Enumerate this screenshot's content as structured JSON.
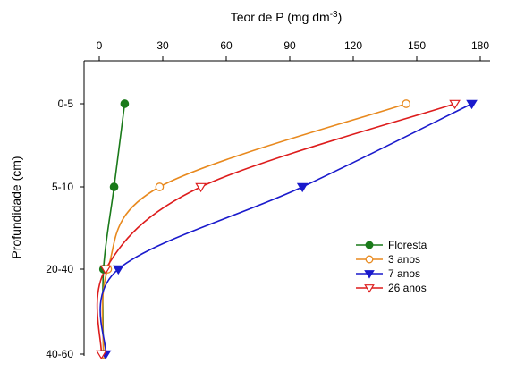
{
  "chart_data": {
    "type": "line",
    "title": "",
    "xlabel": {
      "prefix": "Teor de P (mg dm",
      "superscript": "-3",
      "suffix": ")"
    },
    "ylabel": "Profundidade (cm)",
    "x_axis_position": "top",
    "xlim": [
      0,
      180
    ],
    "x_ticks": [
      0,
      30,
      60,
      90,
      120,
      150,
      180
    ],
    "y_categories": [
      "0-5",
      "5-10",
      "20-40",
      "40-60"
    ],
    "y_category_values": [
      0,
      1,
      2,
      3
    ],
    "y_inverted": true,
    "grid": false,
    "legend_position": "center-right",
    "series": [
      {
        "name": "Floresta",
        "color": "#1a7a1a",
        "marker": "circle",
        "filled": true,
        "points": [
          {
            "x": 12,
            "y": "0-5"
          },
          {
            "x": 7,
            "y": "5-10"
          },
          {
            "x": 2,
            "y": "20-40"
          },
          {
            "x": 2,
            "y": "40-60"
          }
        ]
      },
      {
        "name": "3 anos",
        "color": "#e8891e",
        "marker": "circle",
        "filled": false,
        "points": [
          {
            "x": 145,
            "y": "0-5"
          },
          {
            "x": 28.5,
            "y": "5-10"
          },
          {
            "x": 4,
            "y": "20-40"
          },
          {
            "x": 2,
            "y": "40-60"
          }
        ]
      },
      {
        "name": "7 anos",
        "color": "#1a1acc",
        "marker": "triangle-down",
        "filled": true,
        "points": [
          {
            "x": 176,
            "y": "0-5"
          },
          {
            "x": 96,
            "y": "5-10"
          },
          {
            "x": 9,
            "y": "20-40"
          },
          {
            "x": 3,
            "y": "40-60"
          }
        ]
      },
      {
        "name": "26 anos",
        "color": "#dd1c1c",
        "marker": "triangle-down",
        "filled": false,
        "points": [
          {
            "x": 168,
            "y": "0-5"
          },
          {
            "x": 48,
            "y": "5-10"
          },
          {
            "x": 3,
            "y": "20-40"
          },
          {
            "x": 1,
            "y": "40-60"
          }
        ]
      }
    ]
  }
}
